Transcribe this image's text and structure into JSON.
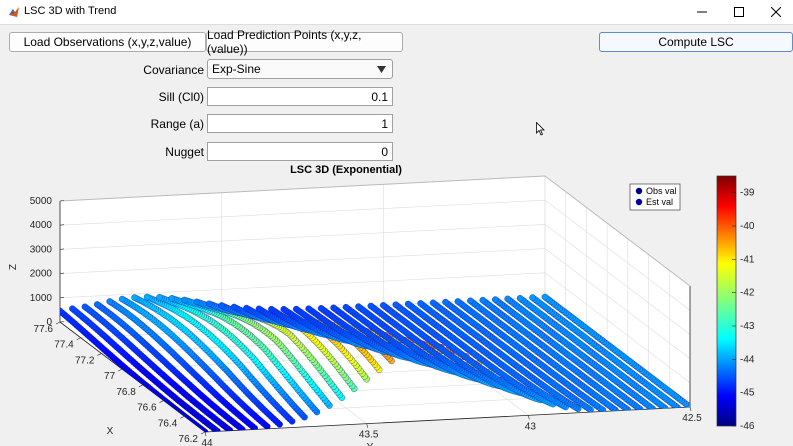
{
  "window": {
    "title": "LSC 3D with Trend"
  },
  "toolbar": {
    "load_obs": "Load Observations (x,y,z,value)",
    "load_pred": "Load Prediction Points (x,y,z,(value))",
    "compute": "Compute LSC"
  },
  "params": {
    "covariance_label": "Covariance",
    "covariance_value": "Exp-Sine",
    "sill_label": "Sill (Cl0)",
    "sill_value": "0.1",
    "range_label": "Range (a)",
    "range_value": "1",
    "nugget_label": "Nugget",
    "nugget_value": "0"
  },
  "chart_data": {
    "type": "scatter",
    "title": "LSC 3D (Exponential)",
    "zlabel": "Z",
    "xlabel": "X",
    "ylabel": "Y",
    "z_ticks": [
      "5000",
      "4000",
      "3000",
      "2000",
      "1000",
      "0"
    ],
    "x_ticks": [
      "77.6",
      "77.4",
      "77.2",
      "77",
      "76.8",
      "76.6",
      "76.4",
      "76.2"
    ],
    "y_ticks": [
      "44",
      "43.5",
      "43",
      "42.5"
    ],
    "zlim": [
      0,
      5000
    ],
    "xlim": [
      76.2,
      77.6
    ],
    "ylim": [
      42.5,
      44
    ],
    "legend": {
      "placement": "top-right",
      "entries": [
        "Obs val",
        "Est val"
      ]
    },
    "colorbar": {
      "colormap": "jet",
      "ticks": [
        "-39",
        "-40",
        "-41",
        "-42",
        "-43",
        "-44",
        "-45",
        "-46"
      ],
      "range": [
        -46,
        -38.5
      ]
    },
    "grid": true
  }
}
